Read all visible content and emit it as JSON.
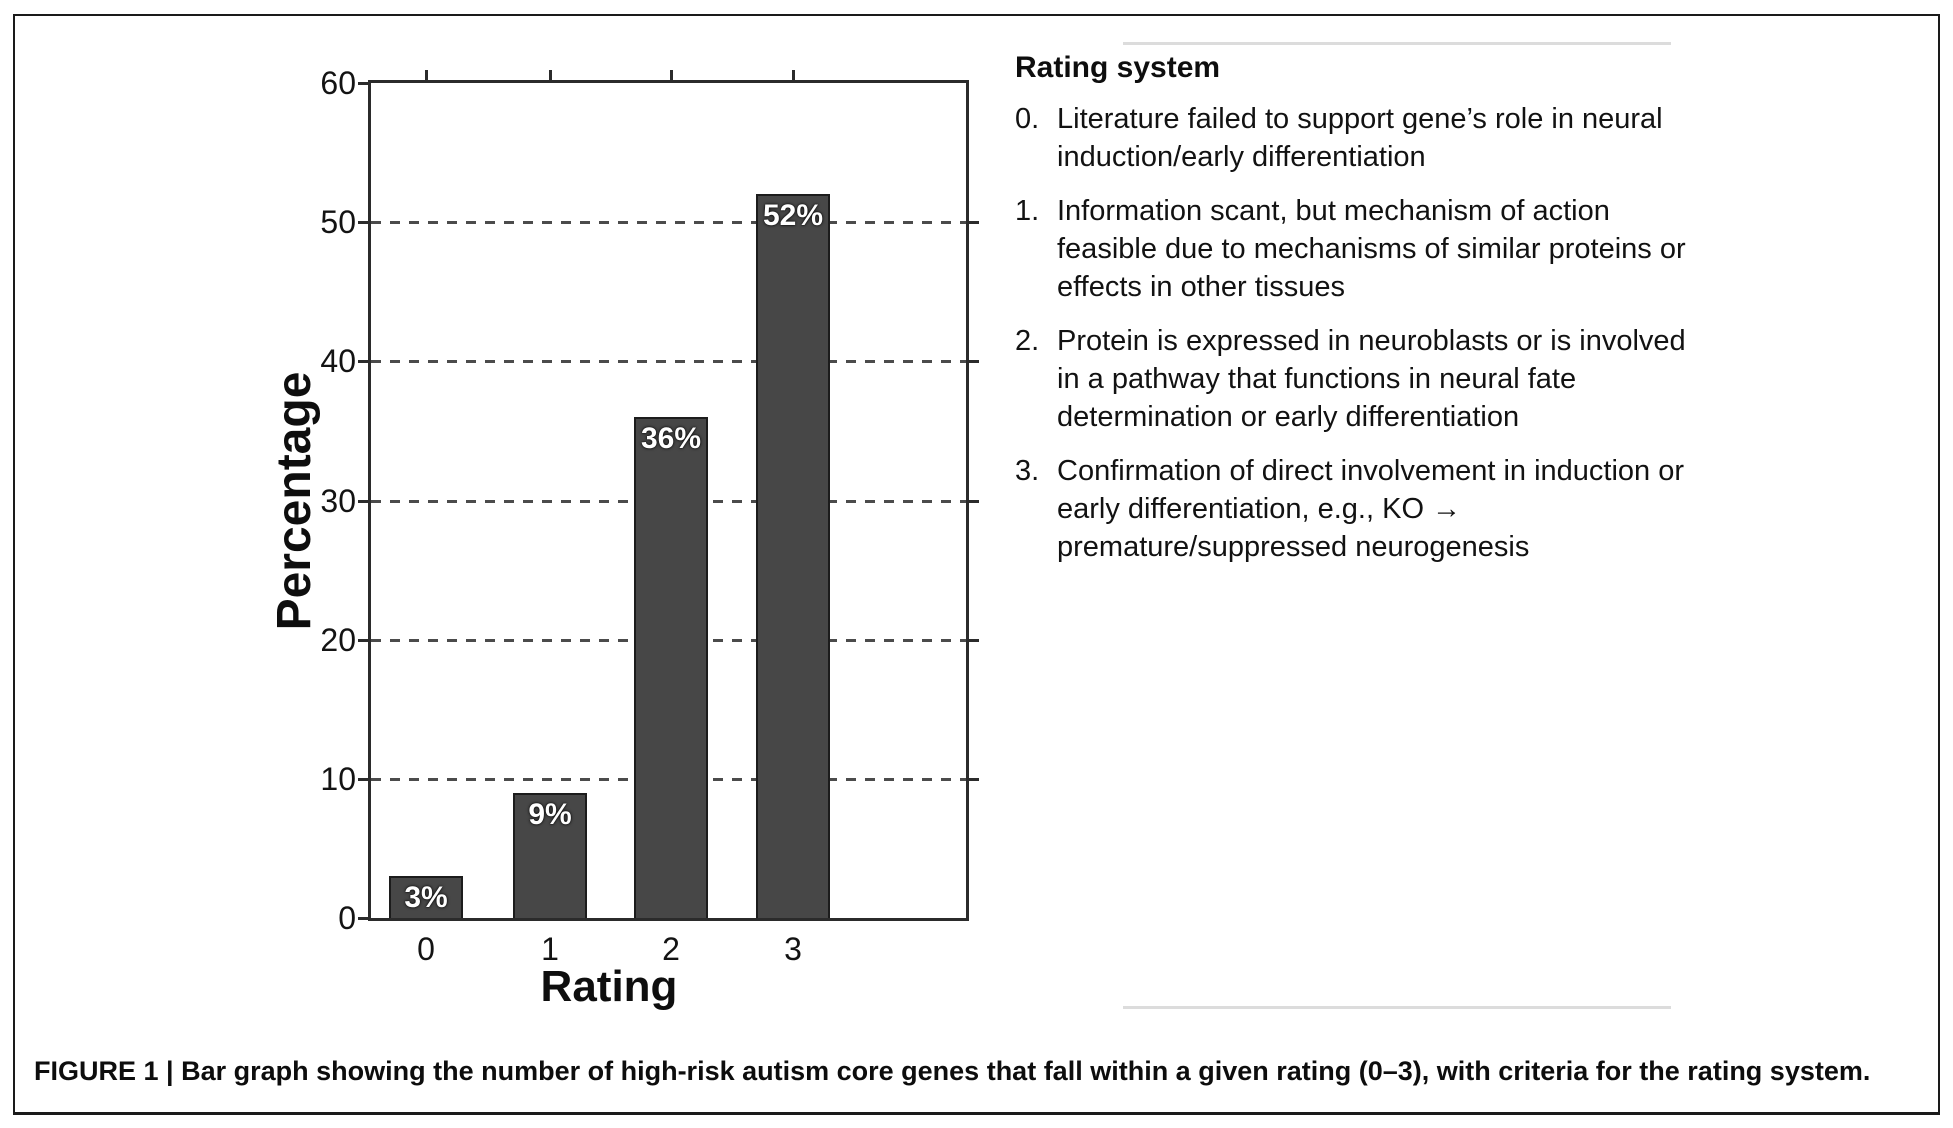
{
  "figure": {
    "caption": "FIGURE 1 | Bar graph showing the number of high-risk autism core genes that fall within a given rating (0–3), with criteria for the rating system."
  },
  "rating_system": {
    "title": "Rating system",
    "items": [
      {
        "number": "0.",
        "text": "Literature failed to support gene’s role in neural induction/early differentiation"
      },
      {
        "number": "1.",
        "text": "Information scant, but mechanism of action feasible due to mechanisms of similar proteins or effects in other tissues"
      },
      {
        "number": "2.",
        "text": "Protein is expressed in neuroblasts or is involved in a pathway that functions in neural fate determination or early differentiation"
      },
      {
        "number": "3.",
        "text": "Confirmation of direct involvement in induction or early differentiation, e.g., KO → premature/suppressed neurogenesis"
      }
    ]
  },
  "chart_data": {
    "type": "bar",
    "title": "",
    "categories": [
      "0",
      "1",
      "2",
      "3"
    ],
    "values": [
      3,
      9,
      36,
      52
    ],
    "bar_labels": [
      "3%",
      "9%",
      "36%",
      "52%"
    ],
    "xlabel": "Rating",
    "ylabel": "Percentage",
    "ylim": [
      0,
      60
    ],
    "yticks": [
      0,
      10,
      20,
      30,
      40,
      50,
      60
    ],
    "gridline_values": [
      10,
      20,
      30,
      40,
      50
    ],
    "grid_style": "dashed",
    "legend_position": "none",
    "bar_color": "#474747",
    "bar_label_color": "#ffffff"
  },
  "colors": {
    "axis": "#2b2b2b",
    "separator": "#dcdcdc",
    "frame_border": "#1a1a1a",
    "background": "#ffffff"
  }
}
